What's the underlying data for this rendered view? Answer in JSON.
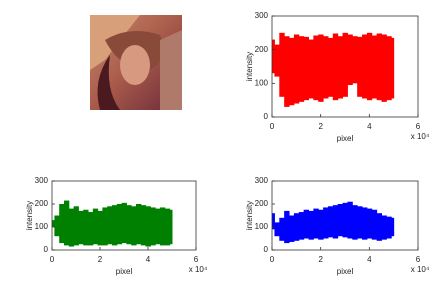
{
  "charts": [
    {
      "type": "band",
      "x_label": "pixel",
      "y_label": "intensity",
      "x_exponent": "x 10⁴",
      "xlim": [
        0,
        60000
      ],
      "xticks": [
        {
          "value": 0,
          "label": "0"
        },
        {
          "value": 20000,
          "label": "2"
        },
        {
          "value": 40000,
          "label": "4"
        },
        {
          "value": 60000,
          "label": "6"
        }
      ],
      "ylim": [
        0,
        300
      ],
      "yticks": [
        0,
        100,
        200,
        300
      ],
      "x": [
        0,
        2000,
        4000,
        6000,
        8000,
        10000,
        12000,
        14000,
        16000,
        18000,
        20000,
        22000,
        24000,
        26000,
        28000,
        30000,
        32000,
        34000,
        36000,
        38000,
        40000,
        42000,
        44000,
        46000,
        48000,
        50000
      ],
      "series": [
        {
          "color": "#ff0000",
          "upper": [
            230,
            215,
            250,
            240,
            235,
            245,
            240,
            238,
            230,
            242,
            245,
            240,
            235,
            248,
            240,
            250,
            245,
            240,
            238,
            245,
            250,
            242,
            248,
            245,
            240,
            235
          ],
          "lower": [
            130,
            120,
            60,
            30,
            35,
            40,
            45,
            50,
            55,
            50,
            45,
            55,
            60,
            50,
            55,
            60,
            95,
            100,
            60,
            55,
            50,
            55,
            50,
            45,
            50,
            55
          ]
        }
      ]
    },
    {
      "type": "band",
      "x_label": "pixel",
      "y_label": "intensity",
      "x_exponent": "x 10⁴",
      "xlim": [
        0,
        60000
      ],
      "xticks": [
        {
          "value": 0,
          "label": "0"
        },
        {
          "value": 20000,
          "label": "2"
        },
        {
          "value": 40000,
          "label": "4"
        },
        {
          "value": 60000,
          "label": "6"
        }
      ],
      "ylim": [
        0,
        300
      ],
      "yticks": [
        0,
        100,
        200,
        300
      ],
      "x": [
        0,
        2000,
        4000,
        6000,
        8000,
        10000,
        12000,
        14000,
        16000,
        18000,
        20000,
        22000,
        24000,
        26000,
        28000,
        30000,
        32000,
        34000,
        36000,
        38000,
        40000,
        42000,
        44000,
        46000,
        48000,
        50000
      ],
      "series": [
        {
          "color": "#008000",
          "upper": [
            130,
            150,
            200,
            215,
            180,
            190,
            170,
            175,
            165,
            180,
            170,
            185,
            190,
            195,
            200,
            205,
            195,
            190,
            200,
            195,
            190,
            185,
            180,
            185,
            180,
            175
          ],
          "lower": [
            100,
            60,
            30,
            20,
            15,
            20,
            25,
            20,
            20,
            25,
            20,
            20,
            25,
            20,
            25,
            30,
            25,
            20,
            25,
            20,
            15,
            20,
            25,
            20,
            20,
            25
          ]
        }
      ]
    },
    {
      "type": "band",
      "x_label": "pixel",
      "y_label": "intensity",
      "x_exponent": "x 10⁴",
      "xlim": [
        0,
        60000
      ],
      "xticks": [
        {
          "value": 0,
          "label": "0"
        },
        {
          "value": 20000,
          "label": "2"
        },
        {
          "value": 40000,
          "label": "4"
        },
        {
          "value": 60000,
          "label": "6"
        }
      ],
      "ylim": [
        0,
        300
      ],
      "yticks": [
        0,
        100,
        200,
        300
      ],
      "x": [
        0,
        2000,
        4000,
        6000,
        8000,
        10000,
        12000,
        14000,
        16000,
        18000,
        20000,
        22000,
        24000,
        26000,
        28000,
        30000,
        32000,
        34000,
        36000,
        38000,
        40000,
        42000,
        44000,
        46000,
        48000,
        50000
      ],
      "series": [
        {
          "color": "#0000ff",
          "upper": [
            160,
            120,
            140,
            170,
            150,
            160,
            165,
            175,
            170,
            180,
            175,
            185,
            190,
            195,
            200,
            205,
            210,
            195,
            190,
            185,
            180,
            175,
            160,
            150,
            145,
            140
          ],
          "lower": [
            90,
            60,
            40,
            30,
            35,
            40,
            45,
            50,
            45,
            50,
            45,
            50,
            55,
            50,
            60,
            55,
            50,
            45,
            50,
            45,
            50,
            45,
            40,
            45,
            50,
            60
          ]
        }
      ]
    }
  ]
}
